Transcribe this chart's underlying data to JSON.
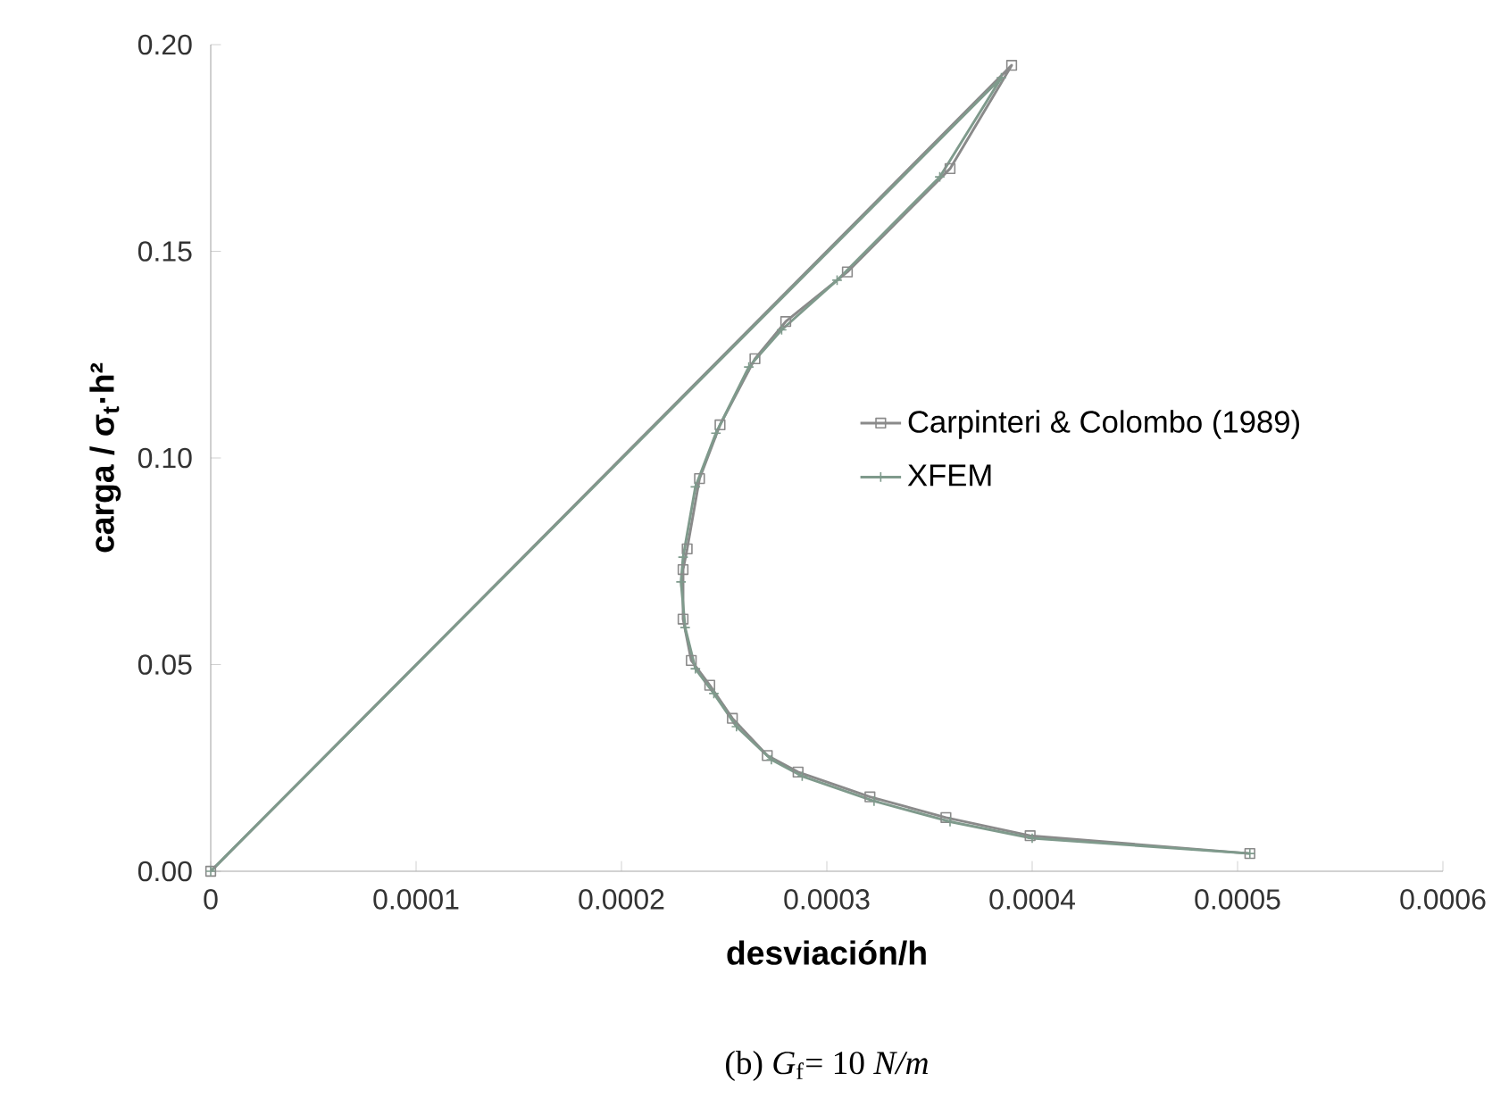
{
  "chart_data": {
    "type": "line",
    "xlabel": "**desviación/h**",
    "ylabel": "**carga / σ$_{t}$·h²**",
    "annotations": [
      "(b) *G*$_{f}$= 10 *N/m*"
    ],
    "xlim": [
      0,
      0.0006
    ],
    "ylim": [
      0,
      0.2
    ],
    "xticks": [
      0,
      0.0001,
      0.0002,
      0.0003,
      0.0004,
      0.0005,
      0.0006
    ],
    "yticks": [
      {
        "value": 0,
        "label": "0.00"
      },
      {
        "value": 0.05,
        "label": "0.05"
      },
      {
        "value": 0.1,
        "label": "0.10"
      },
      {
        "value": 0.15,
        "label": "0.15"
      },
      {
        "value": 0.2,
        "label": "0.20"
      }
    ],
    "legend": "right",
    "series": [
      {
        "name": "Carpinteri & Colombo (1989)",
        "color": "#8a8a8a",
        "marker": "square",
        "x": [
          0,
          0.00039,
          0.00036,
          0.00031,
          0.00028,
          0.000265,
          0.000248,
          0.000238,
          0.000232,
          0.00023,
          0.00023,
          0.000234,
          0.000243,
          0.000254,
          0.000271,
          0.000286,
          0.000321,
          0.000358,
          0.000399,
          0.000506
        ],
        "values": [
          0,
          0.195,
          0.17,
          0.145,
          0.133,
          0.124,
          0.108,
          0.095,
          0.078,
          0.073,
          0.061,
          0.051,
          0.045,
          0.037,
          0.028,
          0.024,
          0.018,
          0.013,
          0.0086,
          0.0043
        ]
      },
      {
        "name": "XFEM",
        "color": "#7f9a8c",
        "marker": "cross",
        "x": [
          0,
          0.000385,
          0.000355,
          0.000305,
          0.000278,
          0.000262,
          0.000246,
          0.000236,
          0.00023,
          0.000229,
          0.000231,
          0.000236,
          0.000245,
          0.000256,
          0.000273,
          0.000288,
          0.000323,
          0.00036,
          0.0004,
          0.000506
        ],
        "values": [
          0,
          0.192,
          0.168,
          0.143,
          0.131,
          0.122,
          0.106,
          0.093,
          0.076,
          0.07,
          0.059,
          0.049,
          0.043,
          0.035,
          0.027,
          0.023,
          0.017,
          0.012,
          0.008,
          0.0043
        ]
      }
    ]
  }
}
